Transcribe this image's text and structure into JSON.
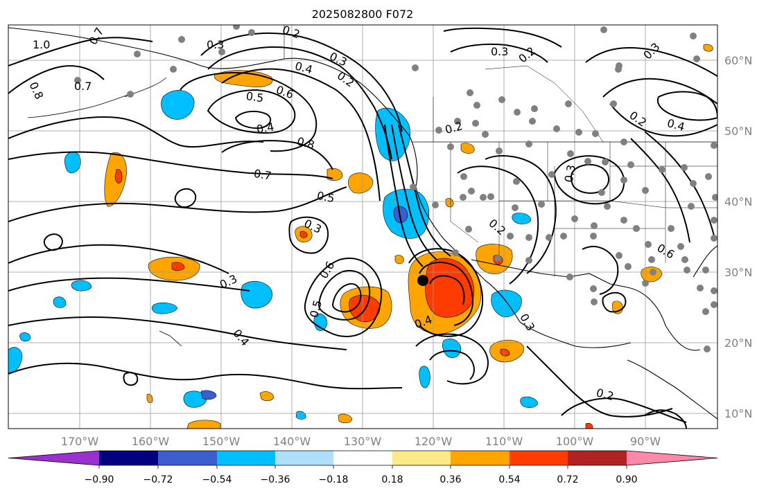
{
  "title": "2025082800 F072",
  "lon_labels": [
    "170°W",
    "160°W",
    "150°W",
    "140°W",
    "130°W",
    "120°W",
    "110°W",
    "100°W",
    "90°W"
  ],
  "lat_labels": [
    "60°N",
    "50°N",
    "40°N",
    "30°N",
    "20°N",
    "10°N"
  ],
  "colorbar": {
    "ticks": [
      "−0.90",
      "−0.72",
      "−0.54",
      "−0.36",
      "−0.18",
      "0.18",
      "0.36",
      "0.54",
      "0.72",
      "0.90"
    ],
    "colors": [
      "#9b30d0",
      "#000080",
      "#3a5fcd",
      "#00bfff",
      "#afe0fb",
      "#ffffff",
      "#fce98a",
      "#ffa500",
      "#ff3c00",
      "#b22222",
      "#ff88aa"
    ]
  },
  "contour_labels": [
    "1.0",
    "0.7",
    "0.8",
    "0.7",
    "0.3",
    "0.2",
    "0.4",
    "0.3",
    "0.2",
    "0.6",
    "0.5",
    "0.4",
    "0.8",
    "0.7",
    "0.5",
    "0.3",
    "0.3",
    "0.6",
    "0.5",
    "0.4",
    "0.4",
    "0.2",
    "0.3",
    "0.2",
    "0.3",
    "0.4",
    "0.2",
    "0.3",
    "0.2",
    "0.3",
    "0.2",
    "0.6"
  ],
  "colors": {
    "fill_blue": "#00bfff",
    "fill_orange": "#ffa500",
    "fill_red": "#ff3c00",
    "fill_darkblue": "#3a5fcd",
    "station": "#808080"
  }
}
